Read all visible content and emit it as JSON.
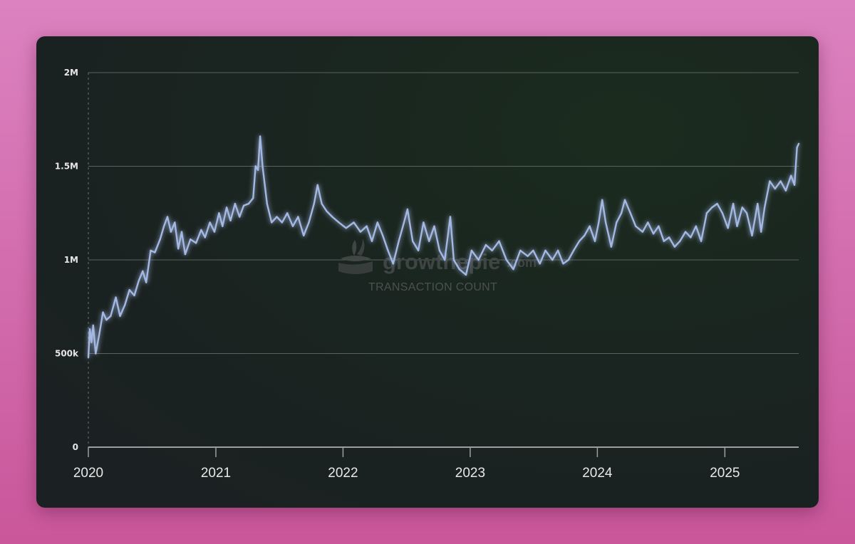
{
  "chart_data": {
    "type": "line",
    "title": "",
    "xlabel": "",
    "ylabel": "",
    "x_ticks": [
      "2020",
      "2021",
      "2022",
      "2023",
      "2024",
      "2025"
    ],
    "y_ticks": [
      "0",
      "500k",
      "1M",
      "1.5M",
      "2M"
    ],
    "ylim": [
      0,
      2000000
    ],
    "xlim": [
      "2020-01-01",
      "2025-08-01"
    ],
    "grid": "horizontal",
    "line_color": "#a4b8e4",
    "series": [
      {
        "values": [
          [
            "2020-01-01",
            480000
          ],
          [
            "2020-01-05",
            630000
          ],
          [
            "2020-01-10",
            560000
          ],
          [
            "2020-01-15",
            650000
          ],
          [
            "2020-01-22",
            500000
          ],
          [
            "2020-02-01",
            600000
          ],
          [
            "2020-02-12",
            720000
          ],
          [
            "2020-02-22",
            680000
          ],
          [
            "2020-03-05",
            700000
          ],
          [
            "2020-03-20",
            800000
          ],
          [
            "2020-04-01",
            700000
          ],
          [
            "2020-04-15",
            760000
          ],
          [
            "2020-04-28",
            840000
          ],
          [
            "2020-05-12",
            810000
          ],
          [
            "2020-05-25",
            890000
          ],
          [
            "2020-06-05",
            940000
          ],
          [
            "2020-06-15",
            880000
          ],
          [
            "2020-06-28",
            1050000
          ],
          [
            "2020-07-10",
            1040000
          ],
          [
            "2020-07-25",
            1110000
          ],
          [
            "2020-08-05",
            1180000
          ],
          [
            "2020-08-15",
            1230000
          ],
          [
            "2020-08-25",
            1150000
          ],
          [
            "2020-09-05",
            1200000
          ],
          [
            "2020-09-15",
            1060000
          ],
          [
            "2020-09-25",
            1150000
          ],
          [
            "2020-10-05",
            1030000
          ],
          [
            "2020-10-20",
            1110000
          ],
          [
            "2020-11-05",
            1090000
          ],
          [
            "2020-11-20",
            1160000
          ],
          [
            "2020-12-01",
            1120000
          ],
          [
            "2020-12-15",
            1200000
          ],
          [
            "2020-12-28",
            1150000
          ],
          [
            "2021-01-10",
            1250000
          ],
          [
            "2021-01-20",
            1180000
          ],
          [
            "2021-02-01",
            1280000
          ],
          [
            "2021-02-12",
            1210000
          ],
          [
            "2021-02-25",
            1300000
          ],
          [
            "2021-03-10",
            1230000
          ],
          [
            "2021-03-22",
            1290000
          ],
          [
            "2021-04-05",
            1300000
          ],
          [
            "2021-04-18",
            1330000
          ],
          [
            "2021-04-25",
            1500000
          ],
          [
            "2021-05-02",
            1480000
          ],
          [
            "2021-05-08",
            1660000
          ],
          [
            "2021-05-15",
            1500000
          ],
          [
            "2021-05-28",
            1300000
          ],
          [
            "2021-06-10",
            1200000
          ],
          [
            "2021-06-25",
            1230000
          ],
          [
            "2021-07-10",
            1200000
          ],
          [
            "2021-07-25",
            1250000
          ],
          [
            "2021-08-10",
            1180000
          ],
          [
            "2021-08-25",
            1230000
          ],
          [
            "2021-09-10",
            1130000
          ],
          [
            "2021-09-25",
            1200000
          ],
          [
            "2021-10-10",
            1300000
          ],
          [
            "2021-10-20",
            1400000
          ],
          [
            "2021-11-01",
            1300000
          ],
          [
            "2021-11-15",
            1260000
          ],
          [
            "2021-12-01",
            1230000
          ],
          [
            "2021-12-20",
            1200000
          ],
          [
            "2022-01-10",
            1170000
          ],
          [
            "2022-02-01",
            1200000
          ],
          [
            "2022-02-20",
            1150000
          ],
          [
            "2022-03-10",
            1180000
          ],
          [
            "2022-03-25",
            1100000
          ],
          [
            "2022-04-10",
            1200000
          ],
          [
            "2022-04-25",
            1130000
          ],
          [
            "2022-05-10",
            1050000
          ],
          [
            "2022-05-25",
            980000
          ],
          [
            "2022-06-10",
            1100000
          ],
          [
            "2022-06-25",
            1200000
          ],
          [
            "2022-07-05",
            1270000
          ],
          [
            "2022-07-20",
            1100000
          ],
          [
            "2022-08-05",
            1050000
          ],
          [
            "2022-08-20",
            1200000
          ],
          [
            "2022-09-05",
            1100000
          ],
          [
            "2022-09-20",
            1180000
          ],
          [
            "2022-10-05",
            1050000
          ],
          [
            "2022-10-20",
            1000000
          ],
          [
            "2022-11-05",
            1230000
          ],
          [
            "2022-11-15",
            1000000
          ],
          [
            "2022-12-01",
            950000
          ],
          [
            "2022-12-20",
            920000
          ],
          [
            "2023-01-05",
            1050000
          ],
          [
            "2023-01-25",
            1000000
          ],
          [
            "2023-02-15",
            1080000
          ],
          [
            "2023-03-05",
            1050000
          ],
          [
            "2023-03-25",
            1100000
          ],
          [
            "2023-04-15",
            1000000
          ],
          [
            "2023-05-05",
            950000
          ],
          [
            "2023-05-25",
            1050000
          ],
          [
            "2023-06-15",
            1020000
          ],
          [
            "2023-07-01",
            1050000
          ],
          [
            "2023-07-20",
            980000
          ],
          [
            "2023-08-05",
            1050000
          ],
          [
            "2023-08-25",
            1000000
          ],
          [
            "2023-09-10",
            1050000
          ],
          [
            "2023-09-25",
            980000
          ],
          [
            "2023-10-10",
            1000000
          ],
          [
            "2023-10-25",
            1050000
          ],
          [
            "2023-11-10",
            1100000
          ],
          [
            "2023-11-25",
            1130000
          ],
          [
            "2023-12-10",
            1180000
          ],
          [
            "2023-12-25",
            1100000
          ],
          [
            "2024-01-05",
            1200000
          ],
          [
            "2024-01-15",
            1320000
          ],
          [
            "2024-01-25",
            1200000
          ],
          [
            "2024-02-10",
            1070000
          ],
          [
            "2024-02-25",
            1200000
          ],
          [
            "2024-03-10",
            1250000
          ],
          [
            "2024-03-20",
            1320000
          ],
          [
            "2024-04-05",
            1250000
          ],
          [
            "2024-04-20",
            1180000
          ],
          [
            "2024-05-10",
            1150000
          ],
          [
            "2024-05-25",
            1200000
          ],
          [
            "2024-06-10",
            1140000
          ],
          [
            "2024-06-25",
            1180000
          ],
          [
            "2024-07-10",
            1100000
          ],
          [
            "2024-07-25",
            1120000
          ],
          [
            "2024-08-10",
            1070000
          ],
          [
            "2024-08-25",
            1100000
          ],
          [
            "2024-09-10",
            1150000
          ],
          [
            "2024-09-25",
            1120000
          ],
          [
            "2024-10-10",
            1180000
          ],
          [
            "2024-10-25",
            1100000
          ],
          [
            "2024-11-10",
            1250000
          ],
          [
            "2024-11-25",
            1280000
          ],
          [
            "2024-12-10",
            1300000
          ],
          [
            "2024-12-25",
            1250000
          ],
          [
            "2025-01-10",
            1170000
          ],
          [
            "2025-01-25",
            1300000
          ],
          [
            "2025-02-05",
            1180000
          ],
          [
            "2025-02-20",
            1280000
          ],
          [
            "2025-03-05",
            1250000
          ],
          [
            "2025-03-20",
            1130000
          ],
          [
            "2025-04-05",
            1300000
          ],
          [
            "2025-04-15",
            1150000
          ],
          [
            "2025-04-25",
            1280000
          ],
          [
            "2025-05-10",
            1420000
          ],
          [
            "2025-05-25",
            1380000
          ],
          [
            "2025-06-10",
            1420000
          ],
          [
            "2025-06-25",
            1370000
          ],
          [
            "2025-07-10",
            1450000
          ],
          [
            "2025-07-20",
            1400000
          ],
          [
            "2025-07-27",
            1600000
          ],
          [
            "2025-08-01",
            1620000
          ]
        ]
      }
    ]
  },
  "watermark": {
    "brand_main": "growthepie",
    "brand_suffix": ".com",
    "subtitle": "TRANSACTION COUNT"
  },
  "colors": {
    "line": "#a4b8e4",
    "grid": "#5a625f",
    "axis": "#9aa09f"
  }
}
